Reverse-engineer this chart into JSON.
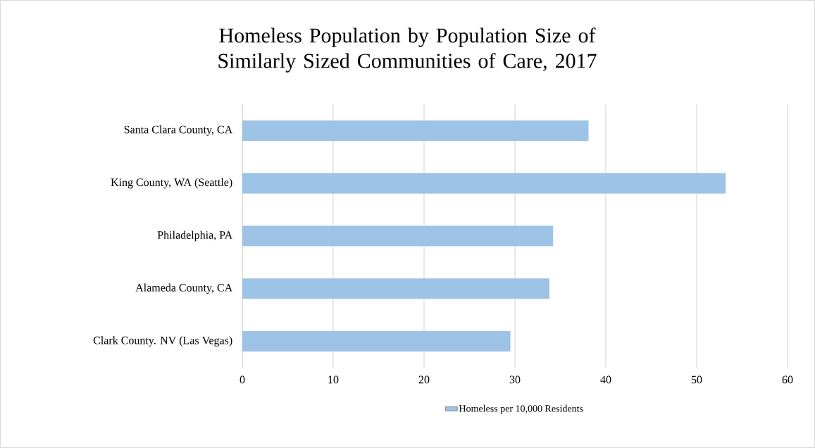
{
  "chart_data": {
    "type": "bar",
    "orientation": "horizontal",
    "title": "Homeless Population by Population Size of Similarly Sized Communities of Care, 2017",
    "categories": [
      "Santa Clara County, CA",
      "King County, WA (Seattle)",
      "Philadelphia, PA",
      "Alameda County, CA",
      "Clark County. NV (Las Vegas)"
    ],
    "series": [
      {
        "name": "Homeless per 10,000 Residents",
        "color": "#9dc3e6",
        "values": [
          38.1,
          53.2,
          34.2,
          33.8,
          29.5
        ]
      }
    ],
    "xlim": [
      0,
      60
    ],
    "xticks": [
      0,
      10,
      20,
      30,
      40,
      50,
      60
    ],
    "grid": "x",
    "legend": "bottom"
  }
}
